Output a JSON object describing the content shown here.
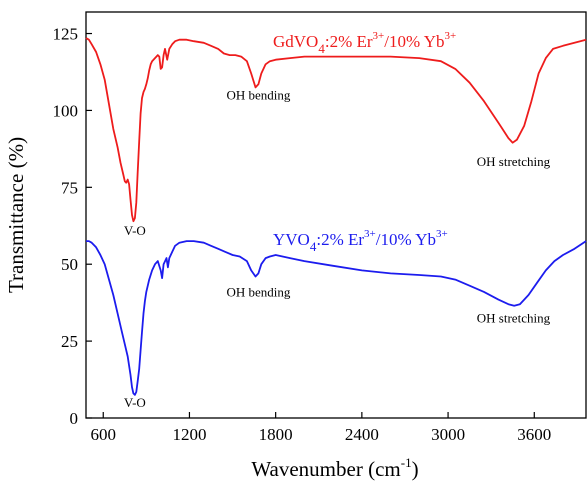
{
  "chart_data": {
    "type": "line",
    "xlabel": "Wavenumber (cm",
    "xlabel_sup": "-1",
    "xlabel_close": ")",
    "ylabel": "Transmittance (%)",
    "xlim": [
      480,
      3960
    ],
    "ylim": [
      0,
      132
    ],
    "xticks": [
      600,
      1200,
      1800,
      2400,
      3000,
      3600
    ],
    "yticks": [
      0,
      25,
      50,
      75,
      100,
      125
    ],
    "grid": false,
    "series": [
      {
        "label": {
          "base": "GdVO",
          "sub": "4",
          "mid": ":2% Er",
          "sup1": "3+",
          "mid2": "/10% Yb",
          "sup2": "3+"
        },
        "color": "#ee1c1c",
        "points": [
          [
            480,
            123.5
          ],
          [
            500,
            123
          ],
          [
            520,
            121.5
          ],
          [
            550,
            119
          ],
          [
            580,
            115
          ],
          [
            610,
            110
          ],
          [
            640,
            102
          ],
          [
            670,
            94
          ],
          [
            700,
            88
          ],
          [
            720,
            83
          ],
          [
            740,
            79
          ],
          [
            750,
            77
          ],
          [
            760,
            76.5
          ],
          [
            770,
            77.5
          ],
          [
            780,
            76
          ],
          [
            790,
            71
          ],
          [
            800,
            66
          ],
          [
            810,
            64
          ],
          [
            820,
            65
          ],
          [
            830,
            70
          ],
          [
            840,
            80
          ],
          [
            850,
            90
          ],
          [
            860,
            99
          ],
          [
            870,
            104
          ],
          [
            880,
            106
          ],
          [
            890,
            107
          ],
          [
            900,
            108.5
          ],
          [
            910,
            110.5
          ],
          [
            920,
            113
          ],
          [
            930,
            115
          ],
          [
            940,
            116
          ],
          [
            950,
            116.5
          ],
          [
            960,
            117
          ],
          [
            970,
            117.5
          ],
          [
            980,
            118
          ],
          [
            990,
            117.5
          ],
          [
            1000,
            113.5
          ],
          [
            1010,
            114
          ],
          [
            1020,
            118
          ],
          [
            1030,
            120
          ],
          [
            1045,
            116.5
          ],
          [
            1060,
            120
          ],
          [
            1080,
            121.5
          ],
          [
            1100,
            122.5
          ],
          [
            1130,
            123
          ],
          [
            1180,
            123
          ],
          [
            1230,
            122.5
          ],
          [
            1300,
            122
          ],
          [
            1350,
            121
          ],
          [
            1400,
            120
          ],
          [
            1440,
            118.5
          ],
          [
            1480,
            118
          ],
          [
            1520,
            118
          ],
          [
            1560,
            117.5
          ],
          [
            1600,
            116
          ],
          [
            1630,
            112
          ],
          [
            1660,
            107.5
          ],
          [
            1680,
            108.5
          ],
          [
            1700,
            112
          ],
          [
            1730,
            115
          ],
          [
            1760,
            116
          ],
          [
            1800,
            116.5
          ],
          [
            1900,
            117
          ],
          [
            2000,
            117.5
          ],
          [
            2200,
            117.5
          ],
          [
            2400,
            117.5
          ],
          [
            2600,
            117.5
          ],
          [
            2800,
            117
          ],
          [
            2950,
            116
          ],
          [
            3050,
            113.5
          ],
          [
            3150,
            109
          ],
          [
            3250,
            103
          ],
          [
            3350,
            96
          ],
          [
            3420,
            91
          ],
          [
            3450,
            89.5
          ],
          [
            3480,
            90.5
          ],
          [
            3530,
            95
          ],
          [
            3580,
            103
          ],
          [
            3630,
            112
          ],
          [
            3680,
            117
          ],
          [
            3730,
            120
          ],
          [
            3800,
            121
          ],
          [
            3880,
            122
          ],
          [
            3960,
            123
          ]
        ]
      },
      {
        "label": {
          "base": "YVO",
          "sub": "4",
          "mid": ":2% Er",
          "sup1": "3+",
          "mid2": "/10% Yb",
          "sup2": "3+"
        },
        "color": "#1c1cee",
        "points": [
          [
            480,
            57.5
          ],
          [
            500,
            57.5
          ],
          [
            520,
            57
          ],
          [
            550,
            55.5
          ],
          [
            580,
            53
          ],
          [
            610,
            50
          ],
          [
            640,
            45
          ],
          [
            670,
            40
          ],
          [
            700,
            34
          ],
          [
            730,
            28
          ],
          [
            750,
            24
          ],
          [
            770,
            20
          ],
          [
            790,
            14
          ],
          [
            800,
            10
          ],
          [
            810,
            8
          ],
          [
            820,
            7.5
          ],
          [
            830,
            8.5
          ],
          [
            840,
            12
          ],
          [
            850,
            16
          ],
          [
            860,
            22
          ],
          [
            870,
            28
          ],
          [
            880,
            34
          ],
          [
            890,
            38
          ],
          [
            900,
            41
          ],
          [
            920,
            45
          ],
          [
            940,
            48
          ],
          [
            960,
            50
          ],
          [
            980,
            51
          ],
          [
            1000,
            48
          ],
          [
            1010,
            45.5
          ],
          [
            1020,
            50
          ],
          [
            1040,
            52
          ],
          [
            1050,
            49
          ],
          [
            1060,
            52
          ],
          [
            1080,
            54
          ],
          [
            1100,
            56
          ],
          [
            1130,
            57
          ],
          [
            1180,
            57.5
          ],
          [
            1230,
            57.5
          ],
          [
            1300,
            57
          ],
          [
            1350,
            56
          ],
          [
            1400,
            55
          ],
          [
            1450,
            54
          ],
          [
            1500,
            53
          ],
          [
            1550,
            52.5
          ],
          [
            1600,
            51
          ],
          [
            1630,
            48
          ],
          [
            1660,
            46
          ],
          [
            1680,
            47
          ],
          [
            1700,
            50
          ],
          [
            1730,
            52
          ],
          [
            1760,
            52.5
          ],
          [
            1800,
            53
          ],
          [
            1900,
            52
          ],
          [
            2000,
            51
          ],
          [
            2200,
            49.5
          ],
          [
            2400,
            48
          ],
          [
            2600,
            47
          ],
          [
            2800,
            46.5
          ],
          [
            2950,
            46
          ],
          [
            3050,
            45
          ],
          [
            3150,
            43
          ],
          [
            3250,
            41
          ],
          [
            3350,
            38.5
          ],
          [
            3420,
            37
          ],
          [
            3460,
            36.5
          ],
          [
            3500,
            37
          ],
          [
            3560,
            40
          ],
          [
            3620,
            44
          ],
          [
            3680,
            48
          ],
          [
            3740,
            51
          ],
          [
            3800,
            53
          ],
          [
            3880,
            55
          ],
          [
            3960,
            57.5
          ]
        ]
      }
    ],
    "annotations": [
      {
        "text": "V-O",
        "x": 820,
        "y": 59.5
      },
      {
        "text": "OH bending",
        "x": 1680,
        "y": 103.5
      },
      {
        "text": "OH stretching",
        "x": 3455,
        "y": 82
      },
      {
        "text": "V-O",
        "x": 820,
        "y": 3.5
      },
      {
        "text": "OH bending",
        "x": 1680,
        "y": 39.5
      },
      {
        "text": "OH stretching",
        "x": 3455,
        "y": 31
      }
    ]
  }
}
